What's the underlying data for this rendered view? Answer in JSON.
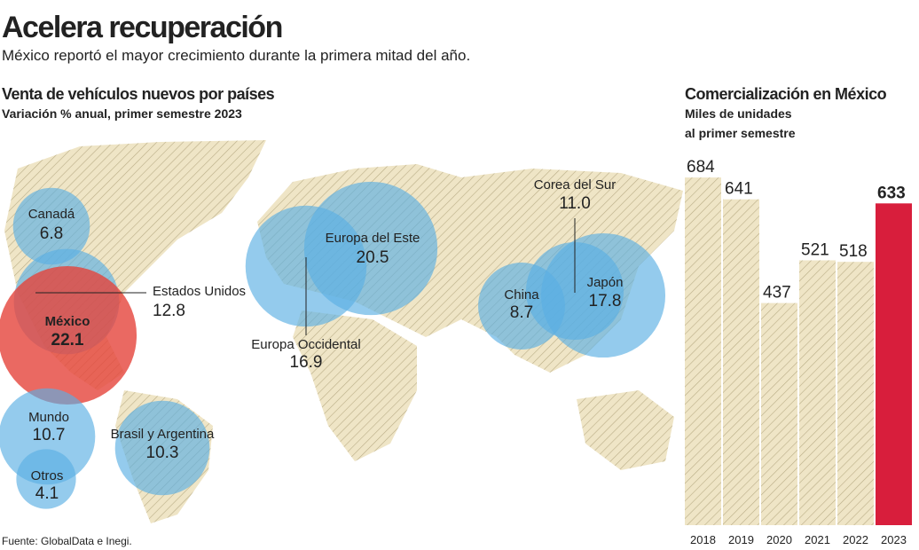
{
  "header": {
    "title": "Acelera recuperación",
    "subtitle": "México reportó el mayor crecimiento durante la primera mitad del año."
  },
  "chart_data": [
    {
      "type": "bubble",
      "title": "Venta de vehículos nuevos por países",
      "subtitle": "Variación % anual, primer semestre 2023",
      "categories": [
        "Canadá",
        "Estados Unidos",
        "México",
        "Mundo",
        "Otros",
        "Brasil y Argentina",
        "Europa Occidental",
        "Europa del Este",
        "Corea del Sur",
        "China",
        "Japón"
      ],
      "values": [
        6.8,
        12.8,
        22.1,
        10.7,
        4.1,
        10.3,
        16.9,
        20.5,
        11.0,
        8.7,
        17.8
      ],
      "value_labels": [
        "6.8",
        "12.8",
        "22.1",
        "10.7",
        "4.1",
        "10.3",
        "16.9",
        "20.5",
        "11.0",
        "8.7",
        "17.8"
      ],
      "colors": [
        "#5aafe3",
        "#5aafe3",
        "#e5433b",
        "#5aafe3",
        "#5aafe3",
        "#5aafe3",
        "#5aafe3",
        "#5aafe3",
        "#5aafe3",
        "#5aafe3",
        "#5aafe3"
      ]
    },
    {
      "type": "bar",
      "title": "Comercialización en México",
      "subtitle": [
        "Miles de unidades",
        "al primer semestre"
      ],
      "categories": [
        "2018",
        "2019",
        "2020",
        "2021",
        "2022",
        "2023"
      ],
      "values": [
        684,
        641,
        437,
        521,
        518,
        633
      ],
      "colors": [
        "#f1e9cf",
        "#f1e9cf",
        "#f1e9cf",
        "#f1e9cf",
        "#f1e9cf",
        "#d81e3c"
      ]
    }
  ],
  "footer": {
    "source": "Fuente: GlobalData e Inegi."
  }
}
